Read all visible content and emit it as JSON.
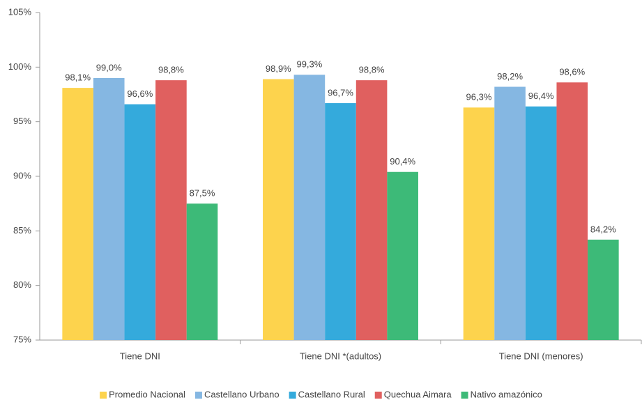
{
  "chart_data": {
    "type": "bar",
    "categories": [
      "Tiene DNI",
      "Tiene DNI *(adultos)",
      "Tiene DNI (menores)"
    ],
    "series": [
      {
        "name": "Promedio Nacional",
        "color": "#fdd34d",
        "values": [
          98.1,
          98.9,
          96.3
        ],
        "value_labels": [
          "98,1%",
          "98,9%",
          "96,3%"
        ]
      },
      {
        "name": "Castellano Urbano",
        "color": "#85b7e2",
        "values": [
          99.0,
          99.3,
          98.2
        ],
        "value_labels": [
          "99,0%",
          "99,3%",
          "98,2%"
        ]
      },
      {
        "name": "Castellano Rural",
        "color": "#34aadc",
        "values": [
          96.6,
          96.7,
          96.4
        ],
        "value_labels": [
          "96,6%",
          "96,7%",
          "96,4%"
        ]
      },
      {
        "name": "Quechua Aimara",
        "color": "#e0605f",
        "values": [
          98.8,
          98.8,
          98.6
        ],
        "value_labels": [
          "98,8%",
          "98,8%",
          "98,6%"
        ]
      },
      {
        "name": "Nativo amazónico",
        "color": "#3dba78",
        "values": [
          87.5,
          90.4,
          84.2
        ],
        "value_labels": [
          "87,5%",
          "90,4%",
          "84,2%"
        ]
      }
    ],
    "ylim": [
      75,
      105
    ],
    "yticks": [
      {
        "value": 75,
        "label": "75%"
      },
      {
        "value": 80,
        "label": "80%"
      },
      {
        "value": 85,
        "label": "85%"
      },
      {
        "value": 90,
        "label": "90%"
      },
      {
        "value": 95,
        "label": "95%"
      },
      {
        "value": 100,
        "label": "100%"
      },
      {
        "value": 105,
        "label": "105%"
      }
    ],
    "grid": false,
    "legend": "bottom"
  }
}
